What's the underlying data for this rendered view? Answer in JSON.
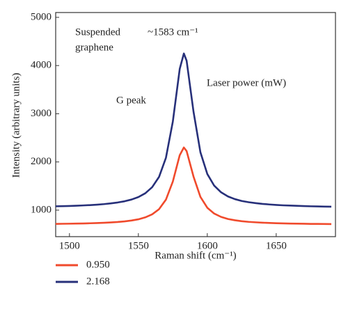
{
  "chart_data": {
    "type": "line",
    "x_label": "Raman shift (cm⁻¹)",
    "y_label": "Intensity (arbitrary units)",
    "annotations": [
      "Suspended",
      "graphene",
      "~1583 cm⁻¹",
      "G peak",
      "Laser power (mW)"
    ],
    "x": [
      1490,
      1495,
      1500,
      1505,
      1510,
      1515,
      1520,
      1525,
      1530,
      1535,
      1540,
      1545,
      1550,
      1555,
      1560,
      1565,
      1570,
      1575,
      1580,
      1583,
      1585,
      1590,
      1595,
      1600,
      1605,
      1610,
      1615,
      1620,
      1625,
      1630,
      1635,
      1640,
      1645,
      1650,
      1655,
      1660,
      1665,
      1670,
      1675,
      1680,
      1685,
      1690
    ],
    "series": [
      {
        "name": "0.950",
        "color": "#f04a2c",
        "values": [
          715,
          717,
          719,
          721,
          724,
          728,
          732,
          738,
          745,
          754,
          767,
          785,
          810,
          850,
          913,
          1020,
          1218,
          1594,
          2140,
          2300,
          2225,
          1697,
          1276,
          1050,
          929,
          860,
          817,
          790,
          770,
          757,
          748,
          740,
          734,
          729,
          726,
          722,
          720,
          718,
          715,
          714,
          712,
          711
        ]
      },
      {
        "name": "2.168",
        "color": "#27307a",
        "values": [
          1080,
          1083,
          1087,
          1092,
          1098,
          1105,
          1114,
          1125,
          1140,
          1159,
          1184,
          1220,
          1271,
          1350,
          1476,
          1690,
          2087,
          2839,
          3930,
          4250,
          4100,
          3044,
          2202,
          1751,
          1508,
          1370,
          1284,
          1229,
          1190,
          1165,
          1146,
          1130,
          1118,
          1108,
          1100,
          1095,
          1090,
          1085,
          1080,
          1077,
          1074,
          1072
        ]
      }
    ],
    "xlim": [
      1490,
      1693
    ],
    "xticks": [
      1500,
      1550,
      1600,
      1650
    ],
    "ylim": [
      450,
      5100
    ],
    "yticks": [
      1000,
      2000,
      3000,
      4000,
      5000
    ],
    "grid": false,
    "legend": "below"
  }
}
